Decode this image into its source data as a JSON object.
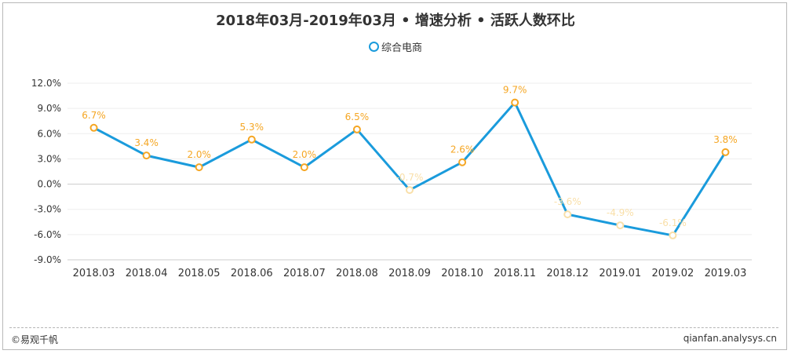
{
  "title": "2018年03月-2019年03月 • 增速分析 • 活跃人数环比",
  "footer": {
    "copyright": "©易观千帆",
    "site": "qianfan.analysys.cn"
  },
  "colors": {
    "line": "#1a9bdc",
    "marker": "#f5a623",
    "label": "#f5a623",
    "label_faded": "#f9dfa8",
    "grid": "#eeeeee"
  },
  "chart_data": {
    "type": "line",
    "categories": [
      "2018.03",
      "2018.04",
      "2018.05",
      "2018.06",
      "2018.07",
      "2018.08",
      "2018.09",
      "2018.10",
      "2018.11",
      "2018.12",
      "2019.01",
      "2019.02",
      "2019.03"
    ],
    "series": [
      {
        "name": "综合电商",
        "values": [
          6.7,
          3.4,
          2.0,
          5.3,
          2.0,
          6.5,
          -0.7,
          2.6,
          9.7,
          -3.6,
          -4.9,
          -6.1,
          3.8
        ],
        "labels": [
          "6.7%",
          "3.4%",
          "2.0%",
          "5.3%",
          "2.0%",
          "6.5%",
          "-0.7%",
          "2.6%",
          "9.7%",
          "-3.6%",
          "-4.9%",
          "-6.1%",
          "3.8%"
        ]
      }
    ],
    "yticks": [
      "12.0%",
      "9.0%",
      "6.0%",
      "3.0%",
      "0.0%",
      "-3.0%",
      "-6.0%",
      "-9.0%"
    ],
    "ylim": [
      -9,
      12
    ],
    "legend_position": "top-center",
    "grid": true
  }
}
